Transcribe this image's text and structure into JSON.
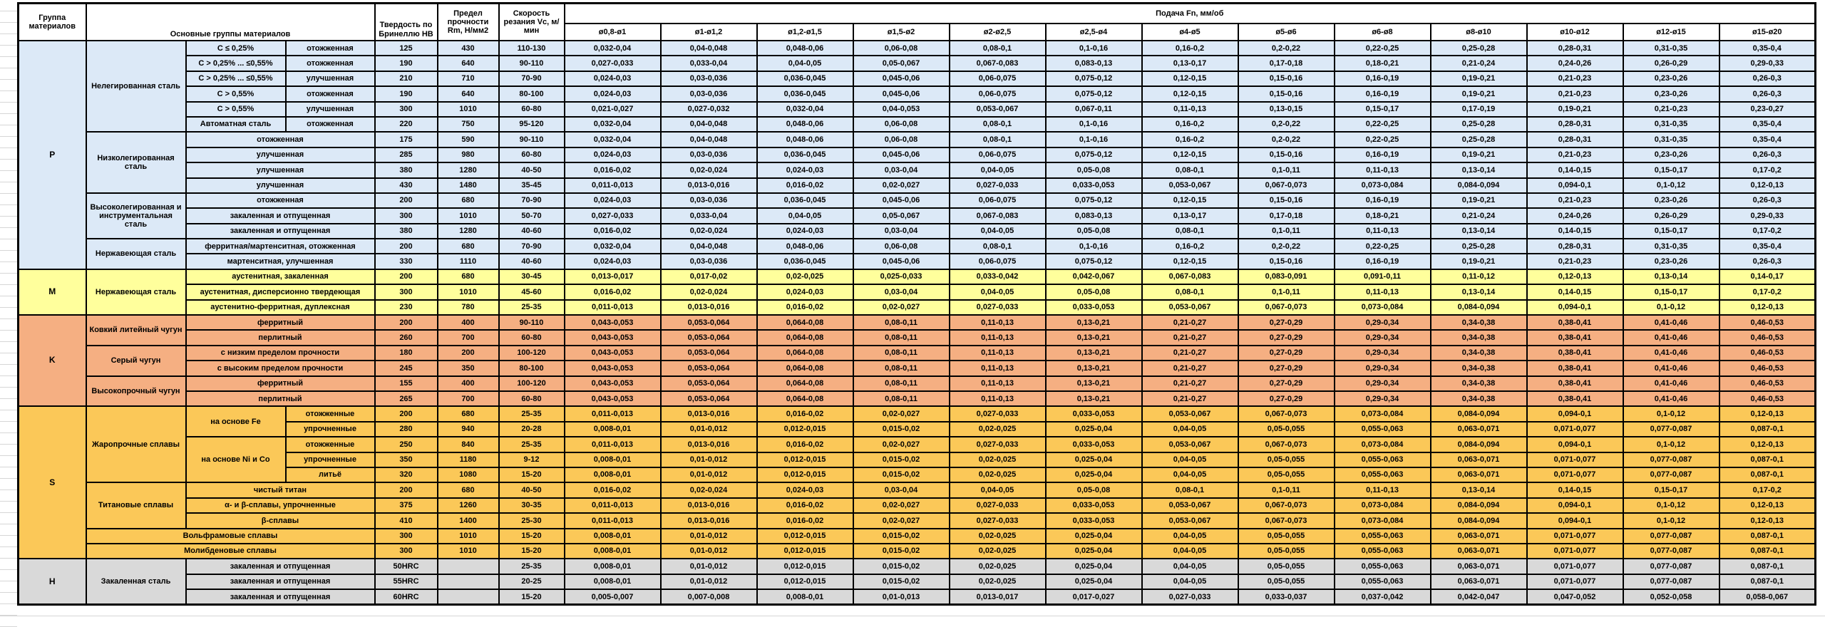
{
  "header": {
    "col_group": "Группа материалов",
    "col_main": "Основные группы материалов",
    "col_hb": "Твердость по Бринеллю HB",
    "col_rm": "Предел прочности Rm, Н/мм2",
    "col_vc": "Скорость резания Vc, м/мин",
    "col_feed": "Подача Fn, мм/об",
    "diameters": [
      "ø0,8-ø1",
      "ø1-ø1,2",
      "ø1,2-ø1,5",
      "ø1,5-ø2",
      "ø2-ø2,5",
      "ø2,5-ø4",
      "ø4-ø5",
      "ø5-ø6",
      "ø6-ø8",
      "ø8-ø10",
      "ø10-ø12",
      "ø12-ø15",
      "ø15-ø20"
    ]
  },
  "colors": {
    "group_p": "#DCE9F7",
    "group_m": "#FFFF9C",
    "group_k": "#F5AF82",
    "group_s": "#FBC858",
    "group_h": "#D9D9D9",
    "border": "#000000",
    "gridline": "#D6D6D6"
  },
  "feed_patterns": {
    "A": [
      "0,032-0,04",
      "0,04-0,048",
      "0,048-0,06",
      "0,06-0,08",
      "0,08-0,1",
      "0,1-0,16",
      "0,16-0,2",
      "0,2-0,22",
      "0,22-0,25",
      "0,25-0,28",
      "0,28-0,31",
      "0,31-0,35",
      "0,35-0,4"
    ],
    "B": [
      "0,027-0,033",
      "0,033-0,04",
      "0,04-0,05",
      "0,05-0,067",
      "0,067-0,083",
      "0,083-0,13",
      "0,13-0,17",
      "0,17-0,18",
      "0,18-0,21",
      "0,21-0,24",
      "0,24-0,26",
      "0,26-0,29",
      "0,29-0,33"
    ],
    "C": [
      "0,024-0,03",
      "0,03-0,036",
      "0,036-0,045",
      "0,045-0,06",
      "0,06-0,075",
      "0,075-0,12",
      "0,12-0,15",
      "0,15-0,16",
      "0,16-0,19",
      "0,19-0,21",
      "0,21-0,23",
      "0,23-0,26",
      "0,26-0,3"
    ],
    "D": [
      "0,021-0,027",
      "0,027-0,032",
      "0,032-0,04",
      "0,04-0,053",
      "0,053-0,067",
      "0,067-0,11",
      "0,11-0,13",
      "0,13-0,15",
      "0,15-0,17",
      "0,17-0,19",
      "0,19-0,21",
      "0,21-0,23",
      "0,23-0,27"
    ],
    "E": [
      "0,016-0,02",
      "0,02-0,024",
      "0,024-0,03",
      "0,03-0,04",
      "0,04-0,05",
      "0,05-0,08",
      "0,08-0,1",
      "0,1-0,11",
      "0,11-0,13",
      "0,13-0,14",
      "0,14-0,15",
      "0,15-0,17",
      "0,17-0,2"
    ],
    "F": [
      "0,011-0,013",
      "0,013-0,016",
      "0,016-0,02",
      "0,02-0,027",
      "0,027-0,033",
      "0,033-0,053",
      "0,053-0,067",
      "0,067-0,073",
      "0,073-0,084",
      "0,084-0,094",
      "0,094-0,1",
      "0,1-0,12",
      "0,12-0,13"
    ],
    "G": [
      "0,013-0,017",
      "0,017-0,02",
      "0,02-0,025",
      "0,025-0,033",
      "0,033-0,042",
      "0,042-0,067",
      "0,067-0,083",
      "0,083-0,091",
      "0,091-0,11",
      "0,11-0,12",
      "0,12-0,13",
      "0,13-0,14",
      "0,14-0,17"
    ],
    "K": [
      "0,043-0,053",
      "0,053-0,064",
      "0,064-0,08",
      "0,08-0,11",
      "0,11-0,13",
      "0,13-0,21",
      "0,21-0,27",
      "0,27-0,29",
      "0,29-0,34",
      "0,34-0,38",
      "0,38-0,41",
      "0,41-0,46",
      "0,46-0,53"
    ],
    "I": [
      "0,008-0,01",
      "0,01-0,012",
      "0,012-0,015",
      "0,015-0,02",
      "0,02-0,025",
      "0,025-0,04",
      "0,04-0,05",
      "0,05-0,055",
      "0,055-0,063",
      "0,063-0,071",
      "0,071-0,077",
      "0,077-0,087",
      "0,087-0,1"
    ],
    "J": [
      "0,005-0,007",
      "0,007-0,008",
      "0,008-0,01",
      "0,01-0,013",
      "0,013-0,017",
      "0,017-0,027",
      "0,027-0,033",
      "0,033-0,037",
      "0,037-0,042",
      "0,042-0,047",
      "0,047-0,052",
      "0,052-0,058",
      "0,058-0,067"
    ]
  },
  "groups": [
    {
      "letter": "P",
      "color": "#DCE9F7",
      "rows": [
        {
          "cells": [
            {
              "t": "Нелегированная сталь",
              "rs": 6
            },
            {
              "t": "C ≤ 0,25%"
            },
            {
              "t": "отожженная"
            }
          ],
          "hb": "125",
          "rm": "430",
          "vc": "110-130",
          "fp": "A"
        },
        {
          "cells": [
            {
              "t": "C > 0,25% ... ≤0,55%"
            },
            {
              "t": "отожженная"
            }
          ],
          "hb": "190",
          "rm": "640",
          "vc": "90-110",
          "fp": "B"
        },
        {
          "cells": [
            {
              "t": "C > 0,25% ... ≤0,55%"
            },
            {
              "t": "улучшенная"
            }
          ],
          "hb": "210",
          "rm": "710",
          "vc": "70-90",
          "fp": "C"
        },
        {
          "cells": [
            {
              "t": "C > 0,55%"
            },
            {
              "t": "отожженная"
            }
          ],
          "hb": "190",
          "rm": "640",
          "vc": "80-100",
          "fp": "C"
        },
        {
          "cells": [
            {
              "t": "C > 0,55%"
            },
            {
              "t": "улучшенная"
            }
          ],
          "hb": "300",
          "rm": "1010",
          "vc": "60-80",
          "fp": "D"
        },
        {
          "cells": [
            {
              "t": "Автоматная сталь"
            },
            {
              "t": "отожженная"
            }
          ],
          "hb": "220",
          "rm": "750",
          "vc": "95-120",
          "fp": "A"
        },
        {
          "cells": [
            {
              "t": "Низколегированная сталь",
              "rs": 4
            },
            {
              "t": "отожженная",
              "cs": 2
            }
          ],
          "hb": "175",
          "rm": "590",
          "vc": "90-110",
          "fp": "A"
        },
        {
          "cells": [
            {
              "t": "улучшенная",
              "cs": 2
            }
          ],
          "hb": "285",
          "rm": "980",
          "vc": "60-80",
          "fp": "C"
        },
        {
          "cells": [
            {
              "t": "улучшенная",
              "cs": 2
            }
          ],
          "hb": "380",
          "rm": "1280",
          "vc": "40-50",
          "fp": "E"
        },
        {
          "cells": [
            {
              "t": "улучшенная",
              "cs": 2
            }
          ],
          "hb": "430",
          "rm": "1480",
          "vc": "35-45",
          "fp": "F"
        },
        {
          "cells": [
            {
              "t": "Высоколегированная и инструментальная сталь",
              "rs": 3
            },
            {
              "t": "отожженная",
              "cs": 2
            }
          ],
          "hb": "200",
          "rm": "680",
          "vc": "70-90",
          "fp": "C"
        },
        {
          "cells": [
            {
              "t": "закаленная и отпущенная",
              "cs": 2
            }
          ],
          "hb": "300",
          "rm": "1010",
          "vc": "50-70",
          "fp": "B"
        },
        {
          "cells": [
            {
              "t": "закаленная и отпущенная",
              "cs": 2
            }
          ],
          "hb": "380",
          "rm": "1280",
          "vc": "40-60",
          "fp": "E"
        },
        {
          "cells": [
            {
              "t": "Нержавеющая сталь",
              "rs": 2
            },
            {
              "t": "ферритная/мартенситная, отожженная",
              "cs": 2
            }
          ],
          "hb": "200",
          "rm": "680",
          "vc": "70-90",
          "fp": "A"
        },
        {
          "cells": [
            {
              "t": "мартенситная, улучшенная",
              "cs": 2
            }
          ],
          "hb": "330",
          "rm": "1110",
          "vc": "40-60",
          "fp": "C"
        }
      ]
    },
    {
      "letter": "M",
      "color": "#FFFF9C",
      "rows": [
        {
          "cells": [
            {
              "t": "Нержавеющая сталь",
              "rs": 3
            },
            {
              "t": "аустенитная, закаленная",
              "cs": 2
            }
          ],
          "hb": "200",
          "rm": "680",
          "vc": "30-45",
          "fp": "G"
        },
        {
          "cells": [
            {
              "t": "аустенитная, дисперсионно твердеющая",
              "cs": 2
            }
          ],
          "hb": "300",
          "rm": "1010",
          "vc": "45-60",
          "fp": "E"
        },
        {
          "cells": [
            {
              "t": "аустенитно-ферритная, дуплексная",
              "cs": 2
            }
          ],
          "hb": "230",
          "rm": "780",
          "vc": "25-35",
          "fp": "F"
        }
      ]
    },
    {
      "letter": "K",
      "color": "#F5AF82",
      "rows": [
        {
          "cells": [
            {
              "t": "Ковкий литейный чугун",
              "rs": 2
            },
            {
              "t": "ферритный",
              "cs": 2
            }
          ],
          "hb": "200",
          "rm": "400",
          "vc": "90-110",
          "fp": "K"
        },
        {
          "cells": [
            {
              "t": "перлитный",
              "cs": 2
            }
          ],
          "hb": "260",
          "rm": "700",
          "vc": "60-80",
          "fp": "K"
        },
        {
          "cells": [
            {
              "t": "Серый чугун",
              "rs": 2
            },
            {
              "t": "с низким пределом прочности",
              "cs": 2
            }
          ],
          "hb": "180",
          "rm": "200",
          "vc": "100-120",
          "fp": "K"
        },
        {
          "cells": [
            {
              "t": "с высоким пределом прочности",
              "cs": 2
            }
          ],
          "hb": "245",
          "rm": "350",
          "vc": "80-100",
          "fp": "K"
        },
        {
          "cells": [
            {
              "t": "Высокопрочный чугун",
              "rs": 2
            },
            {
              "t": "ферритный",
              "cs": 2
            }
          ],
          "hb": "155",
          "rm": "400",
          "vc": "100-120",
          "fp": "K"
        },
        {
          "cells": [
            {
              "t": "перлитный",
              "cs": 2
            }
          ],
          "hb": "265",
          "rm": "700",
          "vc": "60-80",
          "fp": "K"
        }
      ]
    },
    {
      "letter": "S",
      "color": "#FBC858",
      "rows": [
        {
          "cells": [
            {
              "t": "Жаропрочные сплавы",
              "rs": 5
            },
            {
              "t": "на основе Fe",
              "rs": 2
            },
            {
              "t": "отожженные"
            }
          ],
          "hb": "200",
          "rm": "680",
          "vc": "25-35",
          "fp": "F"
        },
        {
          "cells": [
            {
              "t": "упрочненные"
            }
          ],
          "hb": "280",
          "rm": "940",
          "vc": "20-28",
          "fp": "I"
        },
        {
          "cells": [
            {
              "t": "на основе Ni и Co",
              "rs": 3
            },
            {
              "t": "отожженные"
            }
          ],
          "hb": "250",
          "rm": "840",
          "vc": "25-35",
          "fp": "F"
        },
        {
          "cells": [
            {
              "t": "упрочненные"
            }
          ],
          "hb": "350",
          "rm": "1180",
          "vc": "9-12",
          "fp": "I"
        },
        {
          "cells": [
            {
              "t": "литьё"
            }
          ],
          "hb": "320",
          "rm": "1080",
          "vc": "15-20",
          "fp": "I"
        },
        {
          "cells": [
            {
              "t": "Титановые сплавы",
              "rs": 3
            },
            {
              "t": "чистый титан",
              "cs": 2
            }
          ],
          "hb": "200",
          "rm": "680",
          "vc": "40-50",
          "fp": "E"
        },
        {
          "cells": [
            {
              "t": "α- и β-сплавы, упрочненные",
              "cs": 2
            }
          ],
          "hb": "375",
          "rm": "1260",
          "vc": "30-35",
          "fp": "F"
        },
        {
          "cells": [
            {
              "t": "β-сплавы",
              "cs": 2
            }
          ],
          "hb": "410",
          "rm": "1400",
          "vc": "25-30",
          "fp": "F"
        },
        {
          "cells": [
            {
              "t": "Вольфрамовые сплавы",
              "cs": 3
            }
          ],
          "hb": "300",
          "rm": "1010",
          "vc": "15-20",
          "fp": "I"
        },
        {
          "cells": [
            {
              "t": "Молибденовые сплавы",
              "cs": 3
            }
          ],
          "hb": "300",
          "rm": "1010",
          "vc": "15-20",
          "fp": "I"
        }
      ]
    },
    {
      "letter": "H",
      "color": "#D9D9D9",
      "rows": [
        {
          "cells": [
            {
              "t": "Закаленная сталь",
              "rs": 3
            },
            {
              "t": "закаленная и отпущенная",
              "cs": 2
            }
          ],
          "hb": "50HRC",
          "rm": "",
          "vc": "25-35",
          "fp": "I"
        },
        {
          "cells": [
            {
              "t": "закаленная и отпущенная",
              "cs": 2
            }
          ],
          "hb": "55HRC",
          "rm": "",
          "vc": "20-25",
          "fp": "I"
        },
        {
          "cells": [
            {
              "t": "закаленная и отпущенная",
              "cs": 2
            }
          ],
          "hb": "60HRC",
          "rm": "",
          "vc": "15-20",
          "fp": "J"
        }
      ]
    }
  ]
}
